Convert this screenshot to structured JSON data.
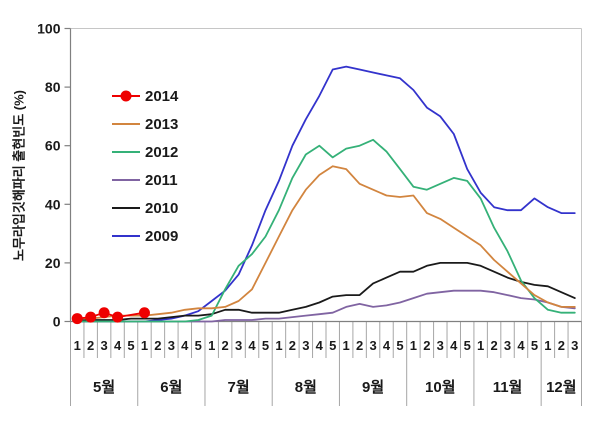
{
  "chart_data": {
    "type": "line",
    "title": "",
    "ylabel": "노무라입깃해파리 출현빈도 (%)",
    "xlabel": "",
    "ylim": [
      0,
      100
    ],
    "y_ticks": [
      0,
      20,
      40,
      60,
      80,
      100
    ],
    "grid": false,
    "legend_position": "upper-left-inside",
    "x_week_labels": [
      "1",
      "2",
      "3",
      "4",
      "5",
      "1",
      "2",
      "3",
      "4",
      "5",
      "1",
      "2",
      "3",
      "4",
      "5",
      "1",
      "2",
      "3",
      "4",
      "5",
      "1",
      "2",
      "3",
      "4",
      "5",
      "1",
      "2",
      "3",
      "4",
      "5",
      "1",
      "2",
      "3",
      "4",
      "5",
      "1",
      "2",
      "3"
    ],
    "months": [
      {
        "label": "5월",
        "weeks": 5
      },
      {
        "label": "6월",
        "weeks": 5
      },
      {
        "label": "7월",
        "weeks": 5
      },
      {
        "label": "8월",
        "weeks": 5
      },
      {
        "label": "9월",
        "weeks": 5
      },
      {
        "label": "10월",
        "weeks": 5
      },
      {
        "label": "11월",
        "weeks": 5
      },
      {
        "label": "12월",
        "weeks": 3
      }
    ],
    "series": [
      {
        "name": "2014",
        "color": "#ee0000",
        "marker": "circle",
        "values": [
          1,
          1.5,
          3,
          1.5,
          null,
          3,
          null,
          null,
          null,
          null,
          null,
          null,
          null,
          null,
          null,
          null,
          null,
          null,
          null,
          null,
          null,
          null,
          null,
          null,
          null,
          null,
          null,
          null,
          null,
          null,
          null,
          null,
          null,
          null,
          null,
          null,
          null,
          null
        ]
      },
      {
        "name": "2013",
        "color": "#d2853f",
        "marker": "none",
        "values": [
          1,
          1,
          1.5,
          2,
          2,
          2,
          2.5,
          3,
          4,
          4.5,
          4.5,
          5,
          7,
          11,
          20,
          29,
          38,
          45,
          50,
          53,
          52,
          47,
          45,
          43,
          42.5,
          43,
          37,
          35,
          32,
          29,
          26,
          21,
          17,
          13,
          9,
          6.5,
          5,
          5
        ]
      },
      {
        "name": "2012",
        "color": "#35b178",
        "marker": "none",
        "values": [
          0,
          0,
          0,
          0,
          0,
          0,
          0,
          0,
          0,
          0.5,
          2,
          11,
          19,
          23,
          29,
          38,
          49,
          57,
          60,
          56,
          59,
          60,
          62,
          58,
          52,
          46,
          45,
          47,
          49,
          48,
          42,
          32,
          24,
          14,
          8,
          4,
          3,
          3
        ]
      },
      {
        "name": "2011",
        "color": "#8064a2",
        "marker": "none",
        "values": [
          0,
          0,
          0,
          0,
          0,
          0,
          0,
          0,
          0,
          0,
          0,
          0.5,
          0.5,
          0.5,
          1,
          1,
          1.5,
          2,
          2.5,
          3,
          5,
          6,
          5,
          5.5,
          6.5,
          8,
          9.5,
          10,
          10.5,
          10.5,
          10.5,
          10,
          9,
          8,
          7.5,
          6.5,
          5,
          4.5
        ]
      },
      {
        "name": "2010",
        "color": "#1a1a1a",
        "marker": "none",
        "values": [
          0.5,
          0.5,
          0.5,
          0.5,
          1,
          1,
          1,
          1.5,
          2,
          2,
          2.5,
          4,
          4,
          3,
          3,
          3,
          4,
          5,
          6.5,
          8.5,
          9,
          9,
          13,
          15,
          17,
          17,
          19,
          20,
          20,
          20,
          19,
          17,
          15,
          13.5,
          12.5,
          12,
          10,
          8
        ]
      },
      {
        "name": "2009",
        "color": "#3333cc",
        "marker": "none",
        "values": [
          0,
          0,
          0,
          0,
          0,
          0,
          0.5,
          1,
          2,
          3.5,
          7,
          10.5,
          16,
          26,
          38,
          48,
          60,
          69,
          77,
          86,
          87,
          86,
          85,
          84,
          83,
          79,
          73,
          70,
          64,
          52,
          44,
          39,
          38,
          38,
          42,
          39,
          37,
          37
        ]
      }
    ],
    "colors": {
      "axis": "#808080",
      "plot_border": "#c6c6c6",
      "category_tick": "#a6a6a6"
    }
  }
}
